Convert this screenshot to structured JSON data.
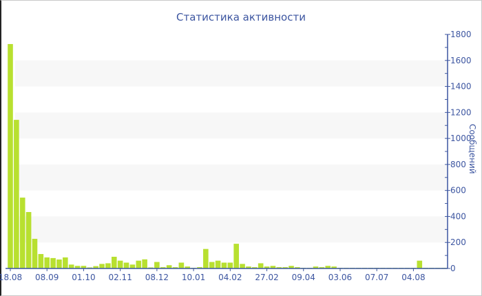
{
  "chart_data": {
    "type": "bar",
    "title": "Статистика активности",
    "ylabel": "Сообщений",
    "ylim": [
      0,
      1800
    ],
    "yticks": [
      0,
      200,
      400,
      600,
      800,
      1000,
      1200,
      1400,
      1600,
      1800
    ],
    "y_axis_side": "right",
    "grid": "alternating horizontal bands",
    "xtick_labels": [
      "18.08",
      "08.09",
      "01.10",
      "02.11",
      "08.12",
      "10.01",
      "04.02",
      "27.02",
      "09.04",
      "03.06",
      "07.07",
      "04.08"
    ],
    "xtick_every_n_bars": 6,
    "bar_color": "#b8e030",
    "axis_color": "#3c55a0",
    "values": [
      1726,
      1143,
      545,
      434,
      228,
      111,
      85,
      80,
      69,
      85,
      30,
      20,
      20,
      8,
      18,
      35,
      40,
      90,
      60,
      45,
      30,
      60,
      70,
      8,
      50,
      10,
      25,
      10,
      45,
      15,
      5,
      10,
      150,
      50,
      60,
      45,
      45,
      190,
      35,
      15,
      10,
      40,
      15,
      20,
      10,
      10,
      20,
      10,
      5,
      5,
      15,
      10,
      20,
      15,
      5,
      5,
      5,
      5,
      5,
      5,
      5,
      5,
      5,
      5,
      5,
      5,
      5,
      60,
      5,
      5,
      5,
      5
    ]
  }
}
